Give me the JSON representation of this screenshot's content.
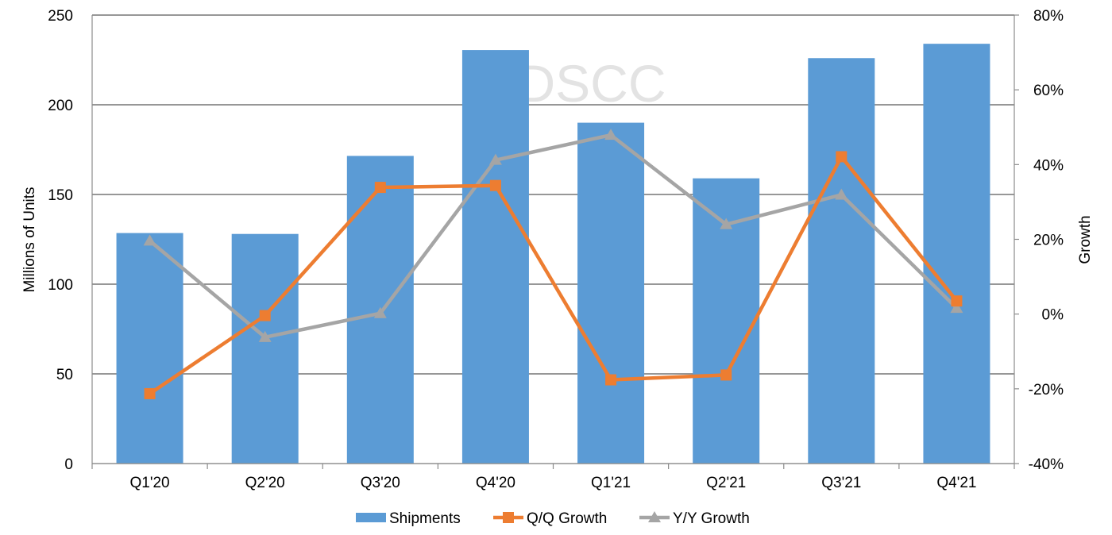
{
  "chart_data": {
    "type": "bar",
    "categories": [
      "Q1'20",
      "Q2'20",
      "Q3'20",
      "Q4'20",
      "Q1'21",
      "Q2'21",
      "Q3'21",
      "Q4'21"
    ],
    "series": [
      {
        "name": "Shipments",
        "type": "bar",
        "axis": "left",
        "color": "#5b9bd5",
        "values": [
          128.5,
          128,
          171.5,
          230.5,
          190,
          159,
          226,
          234
        ]
      },
      {
        "name": "Q/Q Growth",
        "type": "line",
        "axis": "right",
        "marker": "square",
        "color": "#ed7d31",
        "values": [
          -21.3,
          -0.4,
          33.9,
          34.4,
          -17.6,
          -16.3,
          42.1,
          3.5
        ]
      },
      {
        "name": "Y/Y Growth",
        "type": "line",
        "axis": "right",
        "marker": "triangle",
        "color": "#a5a5a5",
        "values": [
          19.6,
          -6.2,
          0.2,
          41.2,
          47.9,
          24,
          31.9,
          1.6
        ]
      }
    ],
    "ylabel": "Millions of Units",
    "y2label": "Growth",
    "ylim": [
      0,
      250
    ],
    "yticks": [
      "0",
      "50",
      "100",
      "150",
      "200",
      "250"
    ],
    "y2lim": [
      -40,
      80
    ],
    "y2ticks": [
      "-40%",
      "-20%",
      "0%",
      "20%",
      "40%",
      "60%",
      "80%"
    ],
    "grid": true,
    "legend_position": "bottom",
    "watermark": "DSCC"
  }
}
